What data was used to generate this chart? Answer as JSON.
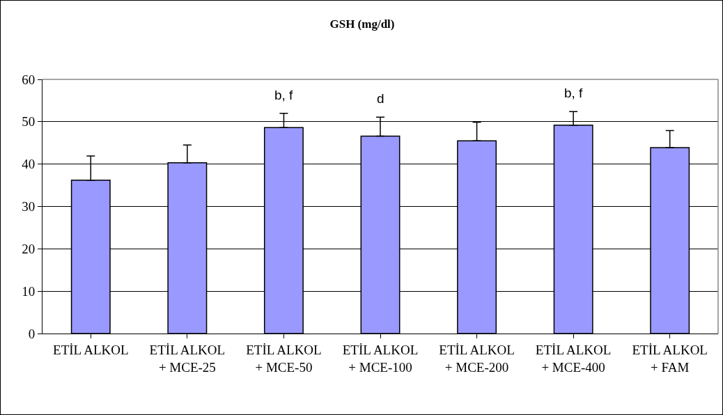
{
  "chart_data": {
    "type": "bar",
    "title": "GSH (mg/dl)",
    "categories": [
      "ETİL ALKOL",
      "ETİL ALKOL\n+ MCE-25",
      "ETİL ALKOL\n+ MCE-50",
      "ETİL ALKOL\n+ MCE-100",
      "ETİL ALKOL\n+ MCE-200",
      "ETİL ALKOL\n+ MCE-400",
      "ETİL ALKOL\n+ FAM"
    ],
    "values": [
      36.2,
      40.3,
      48.6,
      46.6,
      45.5,
      49.2,
      43.9
    ],
    "errors": [
      [
        36.2,
        41.9
      ],
      [
        40.3,
        44.5
      ],
      [
        48.6,
        52.0
      ],
      [
        46.6,
        51.1
      ],
      [
        45.5,
        49.9
      ],
      [
        49.2,
        52.4
      ],
      [
        43.9,
        47.9
      ]
    ],
    "color": "#9999ff",
    "ylim": [
      0,
      60
    ],
    "yticks": [
      0,
      10,
      20,
      30,
      40,
      50,
      60
    ],
    "grid": "y",
    "legend": false,
    "annotations": [
      {
        "text": "b, f",
        "x": "ETİL ALKOL\n+ MCE-50",
        "y": 52.0
      },
      {
        "text": "d",
        "x": "ETİL ALKOL\n+ MCE-100",
        "y": 51.1
      },
      {
        "text": "b, f",
        "x": "ETİL ALKOL\n+ MCE-400",
        "y": 52.4
      }
    ]
  }
}
